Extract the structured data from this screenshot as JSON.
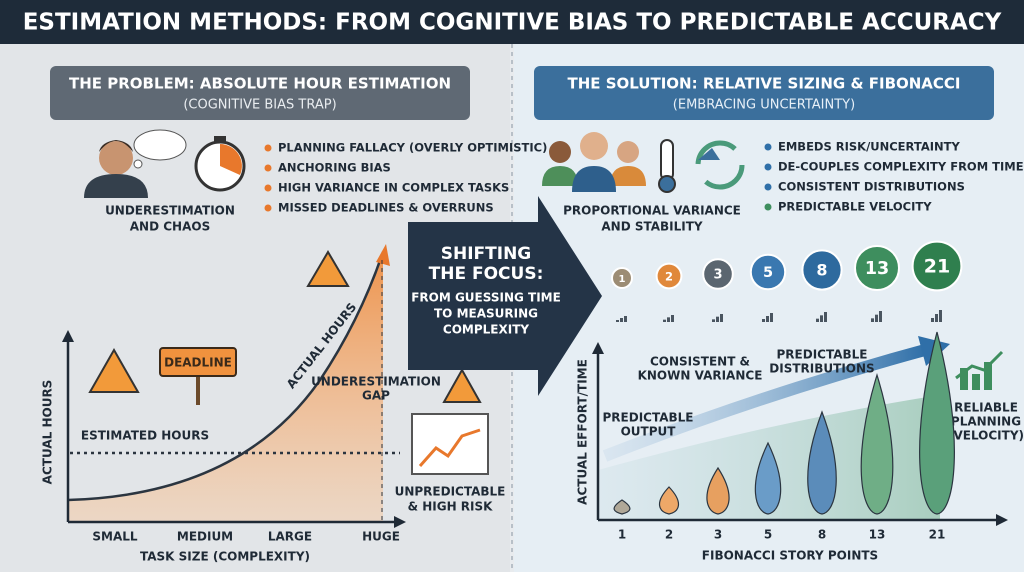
{
  "title": "ESTIMATION METHODS: FROM COGNITIVE BIAS TO PREDICTABLE ACCURACY",
  "left_panel": {
    "heading": "THE PROBLEM: ABSOLUTE HOUR ESTIMATION",
    "subheading": "(COGNITIVE BIAS TRAP)",
    "caption": [
      "UNDERESTIMATION",
      "AND CHAOS"
    ],
    "bullets": [
      "PLANNING FALLACY (OVERLY OPTIMISTIC)",
      "ANCHORING BIAS",
      "HIGH VARIANCE IN COMPLEX TASKS",
      "MISSED DEADLINES & OVERRUNS"
    ],
    "chart": {
      "y_label": "ACTUAL HOURS",
      "x_label": "TASK SIZE (COMPLEXITY)",
      "categories": [
        "SMALL",
        "MEDIUM",
        "LARGE",
        "HUGE"
      ],
      "estimated_label": "ESTIMATED HOURS",
      "actual_label": "ACTUAL HOURS",
      "gap_label": [
        "UNDERESTIMATION",
        "GAP"
      ],
      "sign": "DEADLINE",
      "risk_label": [
        "UNPREDICTABLE",
        "& HIGH RISK"
      ]
    }
  },
  "center": {
    "heading": [
      "SHIFTING",
      "THE FOCUS:"
    ],
    "text": [
      "FROM GUESSING TIME",
      "TO MEASURING",
      "COMPLEXITY"
    ]
  },
  "right_panel": {
    "heading": "THE SOLUTION: RELATIVE SIZING & FIBONACCI",
    "subheading": "(EMBRACING UNCERTAINTY)",
    "caption": [
      "PROPORTIONAL VARIANCE",
      "AND STABILITY"
    ],
    "bullets": [
      "EMBEDS RISK/UNCERTAINTY",
      "DE-COUPLES COMPLEXITY FROM TIME",
      "CONSISTENT DISTRIBUTIONS",
      "PREDICTABLE VELOCITY"
    ],
    "chart": {
      "y_label": "ACTUAL EFFORT/TIME",
      "x_label": "FIBONACCI STORY POINTS",
      "categories": [
        "1",
        "2",
        "3",
        "5",
        "8",
        "13",
        "21"
      ],
      "annotations": {
        "output": [
          "PREDICTABLE",
          "OUTPUT"
        ],
        "variance": [
          "CONSISTENT &",
          "KNOWN VARIANCE"
        ],
        "distributions": [
          "PREDICTABLE",
          "DISTRIBUTIONS"
        ],
        "velocity": [
          "RELIABLE",
          "PLANNING",
          "(VELOCITY)"
        ]
      }
    }
  }
}
